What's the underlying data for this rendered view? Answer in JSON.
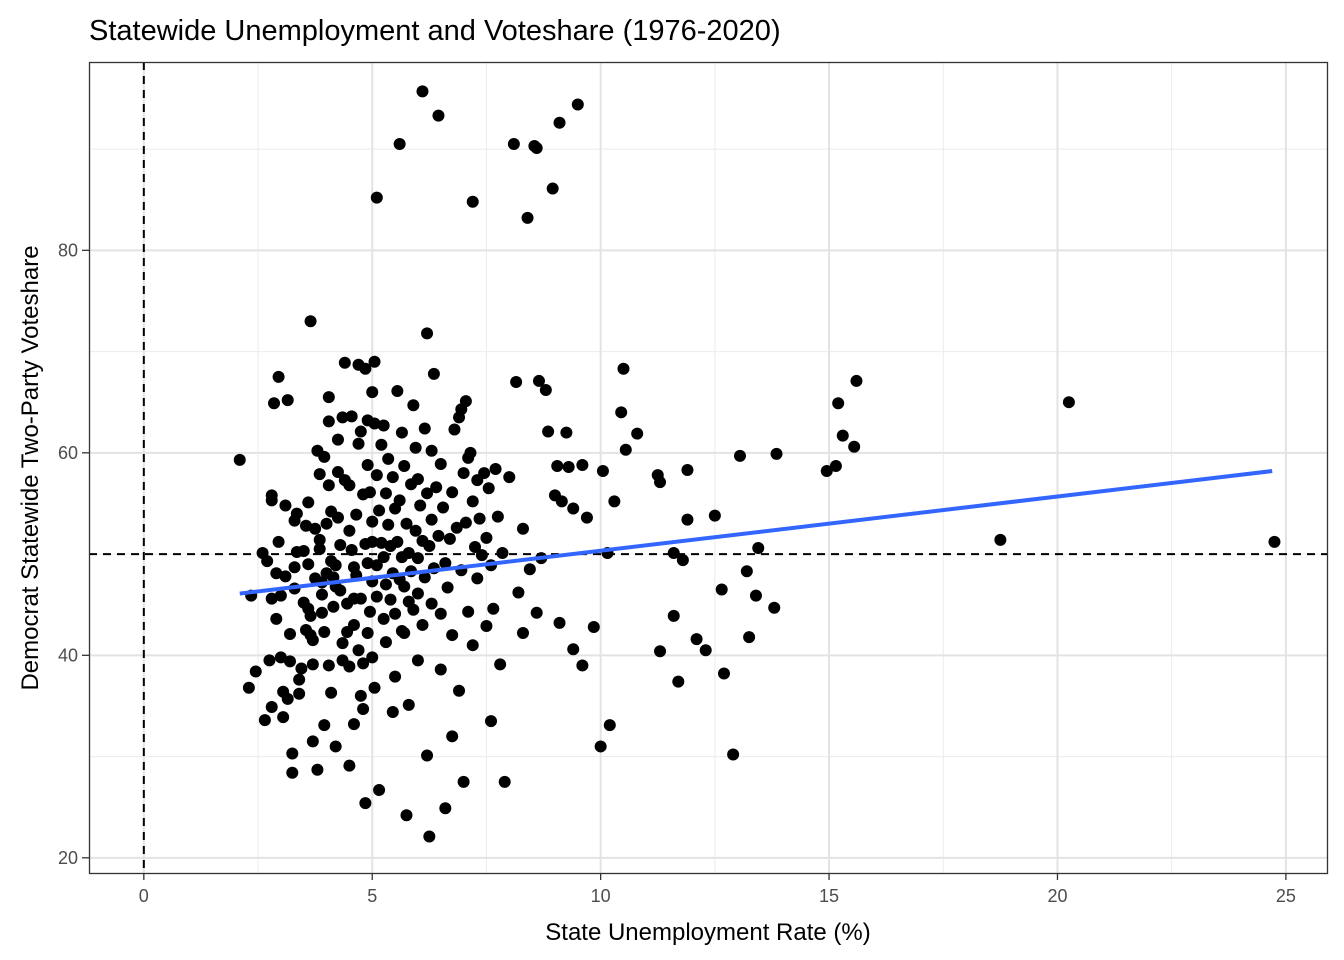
{
  "chart_data": {
    "type": "scatter",
    "title": "Statewide Unemployment and Voteshare (1976-2020)",
    "xlabel": "State Unemployment Rate (%)",
    "ylabel": "Democrat Statewide Two-Party Voteshare",
    "xlim": [
      -1.2,
      25.9
    ],
    "ylim": [
      18.5,
      98.6
    ],
    "x_ticks": [
      0,
      5,
      10,
      15,
      20,
      25
    ],
    "y_ticks": [
      20,
      40,
      60,
      80
    ],
    "x_tick_labels": [
      "0",
      "5",
      "10",
      "15",
      "20",
      "25"
    ],
    "y_tick_labels": [
      "20",
      "40",
      "60",
      "80"
    ],
    "grid": true,
    "reference_lines": {
      "vertical_x": 0,
      "horizontal_y": 50
    },
    "trend_line": {
      "x": [
        2.1,
        24.7
      ],
      "y": [
        46.1,
        58.2
      ],
      "color": "#3366FF"
    },
    "point_color": "#000000",
    "points": [
      [
        2.1,
        59.3
      ],
      [
        2.3,
        36.8
      ],
      [
        2.35,
        45.9
      ],
      [
        2.45,
        38.4
      ],
      [
        2.6,
        50.1
      ],
      [
        2.65,
        33.6
      ],
      [
        2.7,
        49.3
      ],
      [
        2.75,
        39.5
      ],
      [
        2.8,
        34.9
      ],
      [
        2.8,
        55.8
      ],
      [
        2.8,
        55.3
      ],
      [
        2.8,
        45.6
      ],
      [
        2.85,
        64.9
      ],
      [
        2.9,
        48.1
      ],
      [
        2.9,
        43.6
      ],
      [
        2.95,
        67.5
      ],
      [
        2.95,
        51.2
      ],
      [
        3.0,
        39.8
      ],
      [
        3.0,
        45.9
      ],
      [
        3.05,
        33.9
      ],
      [
        3.05,
        36.4
      ],
      [
        3.1,
        54.8
      ],
      [
        3.1,
        47.8
      ],
      [
        3.15,
        65.2
      ],
      [
        3.15,
        35.7
      ],
      [
        3.2,
        42.1
      ],
      [
        3.2,
        39.4
      ],
      [
        3.25,
        30.3
      ],
      [
        3.25,
        28.4
      ],
      [
        3.3,
        46.6
      ],
      [
        3.3,
        53.3
      ],
      [
        3.3,
        48.7
      ],
      [
        3.35,
        54.0
      ],
      [
        3.35,
        50.2
      ],
      [
        3.4,
        36.2
      ],
      [
        3.4,
        37.6
      ],
      [
        3.45,
        38.7
      ],
      [
        3.5,
        45.2
      ],
      [
        3.5,
        50.3
      ],
      [
        3.55,
        52.8
      ],
      [
        3.6,
        55.1
      ],
      [
        3.6,
        49.0
      ],
      [
        3.6,
        44.6
      ],
      [
        3.65,
        73.0
      ],
      [
        3.65,
        43.9
      ],
      [
        3.65,
        42.0
      ],
      [
        3.7,
        41.5
      ],
      [
        3.7,
        39.1
      ],
      [
        3.7,
        31.5
      ],
      [
        3.75,
        52.5
      ],
      [
        3.75,
        47.6
      ],
      [
        3.8,
        60.2
      ],
      [
        3.8,
        28.7
      ],
      [
        3.85,
        57.9
      ],
      [
        3.85,
        51.4
      ],
      [
        3.85,
        50.5
      ],
      [
        3.9,
        47.2
      ],
      [
        3.9,
        46.0
      ],
      [
        3.9,
        44.2
      ],
      [
        3.95,
        59.6
      ],
      [
        3.95,
        33.1
      ],
      [
        4.0,
        53.0
      ],
      [
        4.0,
        48.1
      ],
      [
        4.05,
        65.5
      ],
      [
        4.05,
        63.1
      ],
      [
        4.05,
        56.8
      ],
      [
        4.05,
        39.0
      ],
      [
        4.1,
        54.2
      ],
      [
        4.1,
        49.3
      ],
      [
        4.1,
        36.3
      ],
      [
        4.15,
        47.7
      ],
      [
        4.15,
        44.8
      ],
      [
        4.2,
        31.0
      ],
      [
        4.2,
        48.9
      ],
      [
        4.25,
        61.3
      ],
      [
        4.25,
        58.1
      ],
      [
        4.25,
        53.6
      ],
      [
        4.3,
        50.9
      ],
      [
        4.3,
        46.4
      ],
      [
        4.35,
        63.5
      ],
      [
        4.35,
        41.2
      ],
      [
        4.35,
        39.5
      ],
      [
        4.4,
        68.9
      ],
      [
        4.4,
        57.3
      ],
      [
        4.45,
        45.1
      ],
      [
        4.45,
        42.3
      ],
      [
        4.5,
        56.8
      ],
      [
        4.5,
        52.3
      ],
      [
        4.5,
        38.9
      ],
      [
        4.5,
        29.1
      ],
      [
        4.55,
        63.6
      ],
      [
        4.55,
        50.4
      ],
      [
        4.6,
        48.7
      ],
      [
        4.6,
        43.0
      ],
      [
        4.6,
        33.2
      ],
      [
        4.65,
        53.9
      ],
      [
        4.65,
        47.9
      ],
      [
        4.7,
        68.7
      ],
      [
        4.7,
        60.9
      ],
      [
        4.7,
        40.5
      ],
      [
        4.75,
        62.1
      ],
      [
        4.75,
        45.6
      ],
      [
        4.75,
        36.0
      ],
      [
        4.8,
        55.9
      ],
      [
        4.8,
        34.7
      ],
      [
        4.85,
        68.3
      ],
      [
        4.85,
        51.0
      ],
      [
        4.85,
        25.4
      ],
      [
        4.9,
        63.2
      ],
      [
        4.9,
        58.8
      ],
      [
        4.9,
        49.1
      ],
      [
        4.9,
        42.2
      ],
      [
        4.95,
        56.1
      ],
      [
        4.95,
        44.3
      ],
      [
        5.0,
        66.0
      ],
      [
        5.0,
        53.2
      ],
      [
        5.0,
        51.2
      ],
      [
        5.0,
        47.3
      ],
      [
        5.0,
        39.8
      ],
      [
        5.05,
        69.0
      ],
      [
        5.05,
        62.9
      ],
      [
        5.05,
        36.8
      ],
      [
        5.1,
        85.2
      ],
      [
        5.1,
        57.8
      ],
      [
        5.1,
        48.9
      ],
      [
        5.1,
        45.8
      ],
      [
        5.15,
        54.3
      ],
      [
        5.15,
        26.7
      ],
      [
        5.2,
        60.8
      ],
      [
        5.2,
        51.1
      ],
      [
        5.25,
        62.7
      ],
      [
        5.25,
        49.7
      ],
      [
        5.25,
        43.6
      ],
      [
        5.3,
        56.0
      ],
      [
        5.3,
        47.0
      ],
      [
        5.3,
        41.3
      ],
      [
        5.35,
        59.4
      ],
      [
        5.35,
        52.9
      ],
      [
        5.4,
        50.8
      ],
      [
        5.4,
        45.5
      ],
      [
        5.45,
        57.6
      ],
      [
        5.45,
        48.1
      ],
      [
        5.5,
        54.5
      ],
      [
        5.5,
        44.1
      ],
      [
        5.5,
        37.9
      ],
      [
        5.55,
        66.1
      ],
      [
        5.55,
        51.2
      ],
      [
        5.6,
        90.5
      ],
      [
        5.6,
        55.3
      ],
      [
        5.6,
        47.5
      ],
      [
        5.65,
        62.0
      ],
      [
        5.65,
        49.7
      ],
      [
        5.65,
        42.4
      ],
      [
        5.7,
        58.7
      ],
      [
        5.7,
        46.8
      ],
      [
        5.75,
        53.0
      ],
      [
        5.75,
        24.2
      ],
      [
        5.8,
        50.1
      ],
      [
        5.8,
        45.3
      ],
      [
        5.8,
        35.1
      ],
      [
        5.85,
        56.9
      ],
      [
        5.85,
        48.3
      ],
      [
        5.9,
        64.7
      ],
      [
        5.9,
        44.5
      ],
      [
        5.95,
        60.5
      ],
      [
        5.95,
        52.3
      ],
      [
        6.0,
        57.4
      ],
      [
        6.0,
        49.6
      ],
      [
        6.0,
        46.1
      ],
      [
        6.05,
        54.8
      ],
      [
        6.1,
        95.7
      ],
      [
        6.1,
        51.3
      ],
      [
        6.1,
        43.0
      ],
      [
        6.15,
        62.4
      ],
      [
        6.15,
        47.7
      ],
      [
        6.2,
        71.8
      ],
      [
        6.2,
        56.0
      ],
      [
        6.2,
        30.1
      ],
      [
        6.25,
        22.1
      ],
      [
        6.25,
        50.8
      ],
      [
        6.3,
        60.2
      ],
      [
        6.3,
        53.4
      ],
      [
        6.3,
        45.1
      ],
      [
        6.35,
        67.8
      ],
      [
        6.35,
        48.6
      ],
      [
        6.4,
        56.6
      ],
      [
        6.45,
        93.3
      ],
      [
        6.45,
        51.8
      ],
      [
        6.5,
        58.9
      ],
      [
        6.5,
        44.1
      ],
      [
        6.55,
        54.6
      ],
      [
        6.6,
        24.9
      ],
      [
        6.6,
        49.1
      ],
      [
        6.65,
        46.7
      ],
      [
        6.7,
        51.5
      ],
      [
        6.75,
        56.1
      ],
      [
        6.75,
        42.0
      ],
      [
        6.8,
        62.3
      ],
      [
        6.85,
        52.6
      ],
      [
        6.9,
        63.5
      ],
      [
        6.95,
        64.3
      ],
      [
        6.95,
        48.4
      ],
      [
        7.0,
        58.0
      ],
      [
        7.0,
        27.5
      ],
      [
        7.05,
        65.1
      ],
      [
        7.05,
        53.1
      ],
      [
        7.1,
        59.5
      ],
      [
        7.1,
        44.3
      ],
      [
        7.15,
        60.0
      ],
      [
        7.2,
        84.8
      ],
      [
        7.2,
        55.2
      ],
      [
        7.25,
        50.7
      ],
      [
        7.3,
        57.3
      ],
      [
        7.3,
        47.6
      ],
      [
        7.35,
        53.5
      ],
      [
        7.4,
        49.9
      ],
      [
        7.45,
        58.0
      ],
      [
        7.5,
        51.6
      ],
      [
        7.55,
        56.5
      ],
      [
        7.6,
        48.9
      ],
      [
        7.6,
        33.5
      ],
      [
        7.65,
        44.6
      ],
      [
        7.7,
        58.4
      ],
      [
        7.75,
        53.7
      ],
      [
        7.85,
        50.1
      ],
      [
        7.9,
        27.5
      ],
      [
        8.0,
        57.6
      ],
      [
        8.1,
        90.5
      ],
      [
        8.15,
        67.0
      ],
      [
        8.2,
        46.2
      ],
      [
        8.3,
        52.5
      ],
      [
        8.4,
        83.2
      ],
      [
        8.45,
        48.5
      ],
      [
        8.55,
        90.3
      ],
      [
        8.6,
        90.1
      ],
      [
        8.65,
        67.1
      ],
      [
        8.7,
        49.6
      ],
      [
        8.8,
        66.2
      ],
      [
        8.85,
        62.1
      ],
      [
        8.95,
        86.1
      ],
      [
        9.0,
        55.8
      ],
      [
        9.05,
        58.7
      ],
      [
        9.1,
        92.6
      ],
      [
        9.15,
        55.2
      ],
      [
        9.25,
        62.0
      ],
      [
        9.3,
        58.6
      ],
      [
        9.4,
        54.5
      ],
      [
        9.5,
        94.4
      ],
      [
        9.6,
        58.8
      ],
      [
        9.7,
        53.6
      ],
      [
        9.85,
        42.8
      ],
      [
        10.05,
        58.2
      ],
      [
        10.15,
        50.1
      ],
      [
        10.3,
        55.2
      ],
      [
        10.45,
        64.0
      ],
      [
        10.5,
        68.3
      ],
      [
        10.55,
        60.3
      ],
      [
        10.8,
        61.9
      ],
      [
        11.25,
        57.8
      ],
      [
        11.3,
        57.1
      ],
      [
        11.6,
        50.1
      ],
      [
        11.8,
        49.4
      ],
      [
        11.9,
        53.4
      ],
      [
        11.9,
        58.3
      ],
      [
        12.5,
        53.8
      ],
      [
        12.65,
        46.5
      ],
      [
        12.7,
        38.2
      ],
      [
        12.9,
        30.2
      ],
      [
        13.05,
        59.7
      ],
      [
        13.2,
        48.3
      ],
      [
        13.25,
        41.8
      ],
      [
        13.4,
        45.9
      ],
      [
        13.45,
        50.6
      ],
      [
        13.8,
        44.7
      ],
      [
        13.85,
        59.9
      ],
      [
        14.95,
        58.2
      ],
      [
        15.15,
        58.7
      ],
      [
        15.2,
        64.9
      ],
      [
        15.3,
        61.7
      ],
      [
        15.55,
        60.6
      ],
      [
        15.6,
        67.1
      ],
      [
        18.75,
        51.4
      ],
      [
        20.25,
        65.0
      ],
      [
        24.75,
        51.2
      ],
      [
        3.55,
        42.5
      ],
      [
        3.95,
        42.3
      ],
      [
        4.2,
        46.8
      ],
      [
        4.6,
        45.6
      ],
      [
        4.8,
        39.2
      ],
      [
        5.45,
        34.4
      ],
      [
        5.7,
        42.2
      ],
      [
        6.0,
        39.5
      ],
      [
        6.5,
        38.6
      ],
      [
        6.75,
        32.0
      ],
      [
        6.9,
        36.5
      ],
      [
        7.2,
        41.0
      ],
      [
        7.5,
        42.9
      ],
      [
        7.8,
        39.1
      ],
      [
        8.3,
        42.2
      ],
      [
        8.6,
        44.2
      ],
      [
        9.1,
        43.2
      ],
      [
        9.4,
        40.6
      ],
      [
        9.6,
        39.0
      ],
      [
        10.0,
        31.0
      ],
      [
        10.2,
        33.1
      ],
      [
        11.6,
        43.9
      ],
      [
        11.7,
        37.4
      ],
      [
        12.1,
        41.6
      ],
      [
        12.3,
        40.5
      ],
      [
        11.3,
        40.4
      ]
    ]
  }
}
